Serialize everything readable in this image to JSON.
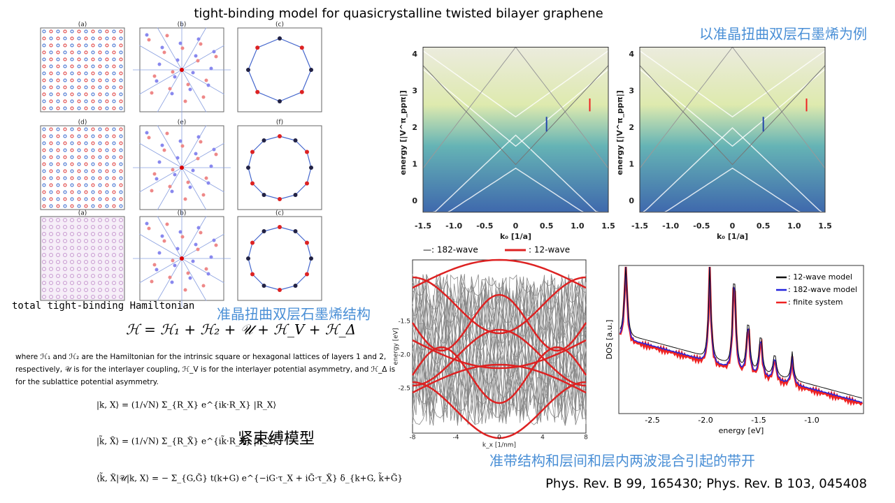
{
  "title": "tight-binding model for quasicrystalline twisted bilayer graphene",
  "example_heading": "以准晶扭曲双层石墨烯为例",
  "structure_caption": "准晶扭曲双层石墨烯结构",
  "hamiltonian_label": "total tight-binding Hamiltonian",
  "hamiltonian_equation": "ℋ = ℋ₁ + ℋ₂ + 𝒰 + ℋ_V + ℋ_Δ",
  "paragraph": [
    "where ℋ₁ and ℋ₂ are the Hamiltonian for the intrinsic square or hexagonal lattices of layers 1 and 2,",
    "respectively, 𝒰 is for the interlayer coupling, ℋ_V is for the interlayer potential asymmetry, and ℋ_Δ is",
    "for the sublattice potential asymmetry."
  ],
  "basis_equations": [
    "|k, X⟩ = (1/√N) Σ_{R_X} e^{ik·R_X} |R_X⟩",
    "|k̃, X̃⟩ = (1/√N) Σ_{R_X̃} e^{ik̃·R_X̃} |R_X̃⟩",
    "⟨k̃, X̃|𝒰|k, X⟩ = − Σ_{G,G̃} t(k+G) e^{−iG·τ_X + iG̃·τ_X̃} δ_{k+G, k̃+G̃}"
  ],
  "tb_label": "紧束缚模型",
  "band_caption": "准带结构和层间和层内两波混合引起的带开",
  "reference": "Phys. Rev. B 99, 165430; Phys. Rev. B 103, 045408",
  "structure_panels": [
    "(a)",
    "(b)",
    "(c)",
    "(d)",
    "(e)",
    "(f)",
    "(a)",
    "(b)",
    "(c)"
  ],
  "band_plots": {
    "ylabel": "energy [|V^π_ppπ|]",
    "xlabel": "k₀ [1/a]",
    "yticks": [
      "0",
      "1",
      "2",
      "3",
      "4"
    ],
    "xticks": [
      "-1.5",
      "-1.0",
      "-0.5",
      "0",
      "0.5",
      "1.0",
      "1.5"
    ]
  },
  "wave_plot": {
    "legend": [
      "—: 182-wave",
      ": 12-wave"
    ],
    "ylabel": "energy [eV]",
    "xlabel": "k_x [1/nm]",
    "yticks": [
      "-1.5",
      "-2.0",
      "-2.5"
    ],
    "xticks": [
      "-8",
      "-4",
      "0",
      "4",
      "8"
    ]
  },
  "dos_plot": {
    "legend": [
      ": 12-wave model",
      ": 182-wave model",
      ": finite system"
    ],
    "ylabel": "DOS [a.u.]",
    "xlabel": "energy [eV]",
    "xticks": [
      "-2.5",
      "-2.0",
      "-1.5",
      "-1.0"
    ]
  }
}
